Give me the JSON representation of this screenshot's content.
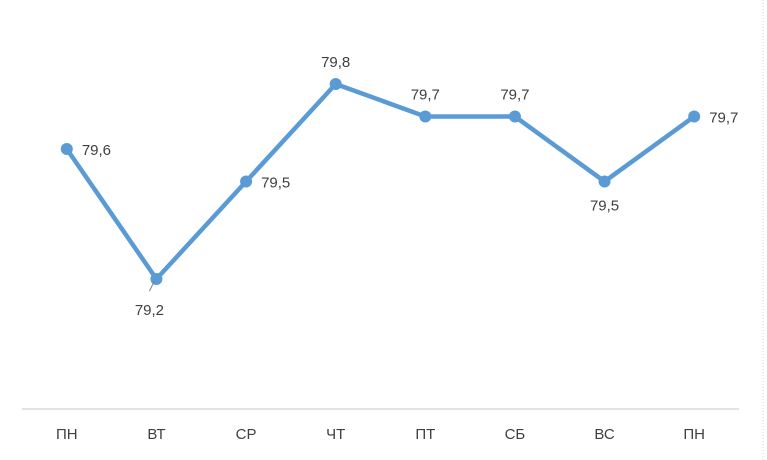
{
  "chart_data": {
    "type": "line",
    "categories": [
      "ПН",
      "ВТ",
      "СР",
      "ЧТ",
      "ПТ",
      "СБ",
      "ВС",
      "ПН"
    ],
    "series": [
      {
        "values": [
          79.6,
          79.2,
          79.5,
          79.8,
          79.7,
          79.7,
          79.5,
          79.7
        ],
        "data_labels": [
          "79,6",
          "79,2",
          "79,5",
          "79,8",
          "79,7",
          "79,7",
          "79,5",
          "79,7"
        ],
        "color": "#5B9BD5"
      }
    ],
    "title": "",
    "xlabel": "",
    "ylabel": "",
    "ylim": [
      78.8,
      80.0
    ],
    "grid": false,
    "legend": "none",
    "axis_color": "#d9d9d9"
  }
}
